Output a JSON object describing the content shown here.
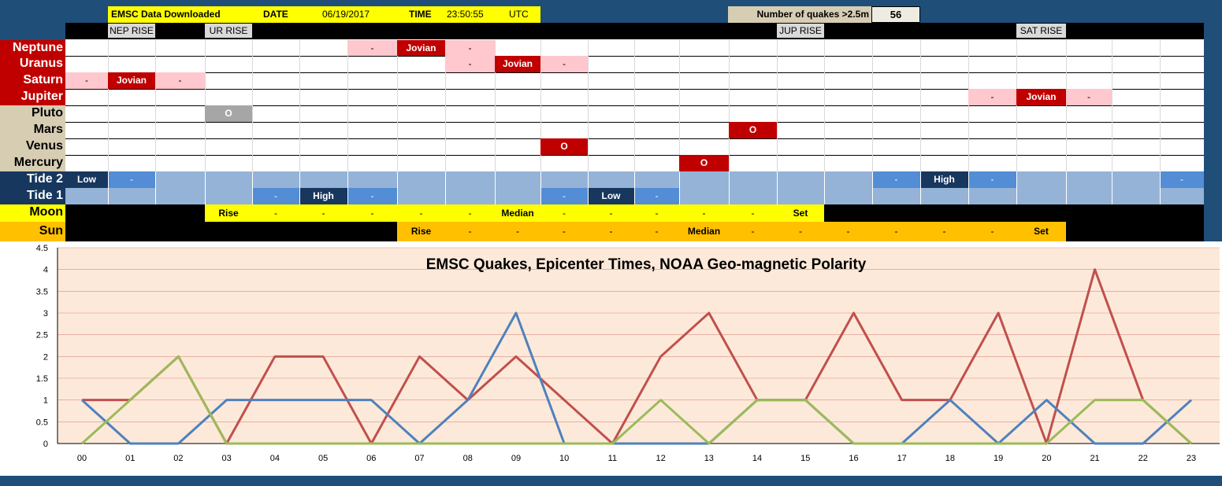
{
  "header": {
    "source": "EMSC Data Downloaded",
    "date_label": "DATE",
    "date": "06/19/2017",
    "time_label": "TIME",
    "time": "23:50:55",
    "tz": "UTC",
    "count_label": "Number of quakes >2.5m",
    "count": "56"
  },
  "rise_labels": [
    "NEP RISE",
    "UR RISE",
    "JUP RISE",
    "SAT RISE"
  ],
  "rows": {
    "neptune": "Neptune",
    "uranus": "Uranus",
    "saturn": "Saturn",
    "jupiter": "Jupiter",
    "pluto": "Pluto",
    "mars": "Mars",
    "venus": "Venus",
    "mercury": "Mercury",
    "tide2": "Tide 2",
    "tide1": "Tide 1",
    "moon": "Moon",
    "sun": "Sun"
  },
  "cells": {
    "dash": "-",
    "jovian": "Jovian",
    "o": "O",
    "low": "Low",
    "high": "High",
    "rise": "Rise",
    "median": "Median",
    "set": "Set"
  },
  "colors": {
    "red": "#c00000",
    "pink": "#ffc7ce",
    "grey": "#a6a6a6",
    "tide_light": "#95b3d7",
    "tide_mid": "#538dd5",
    "tide_dark": "#17375e",
    "yellow": "#ffff00",
    "orange": "#ffc000",
    "line_red": "#c0504d",
    "line_blue": "#4f81bd",
    "line_green": "#9bbb59",
    "plot_bg": "#fde9d9"
  },
  "chart_data": {
    "type": "line",
    "title": "EMSC Quakes, Epicenter Times, NOAA Geo-magnetic Polarity",
    "x": [
      "00",
      "01",
      "02",
      "03",
      "04",
      "05",
      "06",
      "07",
      "08",
      "09",
      "10",
      "11",
      "12",
      "13",
      "14",
      "15",
      "16",
      "17",
      "18",
      "19",
      "20",
      "21",
      "22",
      "23"
    ],
    "ylim": [
      0,
      4.5
    ],
    "yticks": [
      "0",
      "0.5",
      "1",
      "1.5",
      "2",
      "2.5",
      "3",
      "3.5",
      "4",
      "4.5"
    ],
    "grid": true,
    "series": [
      {
        "color": "#c0504d",
        "values": [
          1,
          1,
          2,
          0,
          2,
          2,
          0,
          2,
          1,
          2,
          1,
          0,
          2,
          3,
          1,
          1,
          3,
          1,
          1,
          3,
          0,
          4,
          1,
          0
        ]
      },
      {
        "color": "#4f81bd",
        "values": [
          1,
          0,
          0,
          1,
          1,
          1,
          1,
          0,
          1,
          3,
          0,
          0,
          0,
          0,
          1,
          1,
          0,
          0,
          1,
          0,
          1,
          0,
          0,
          1
        ]
      },
      {
        "color": "#9bbb59",
        "values": [
          0,
          1,
          2,
          0,
          0,
          0,
          0,
          0,
          0,
          0,
          0,
          0,
          1,
          0,
          1,
          1,
          0,
          0,
          0,
          0,
          0,
          1,
          1,
          0
        ]
      }
    ]
  }
}
